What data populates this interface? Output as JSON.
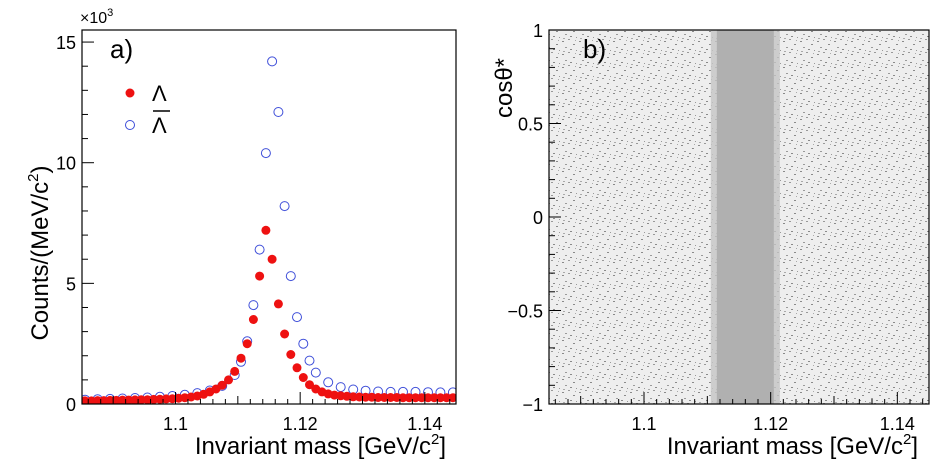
{
  "chart_data": [
    {
      "type": "scatter",
      "panel_label": "a)",
      "xlabel": "Invariant mass [GeV/c",
      "xlabel_sup": "2",
      "xlabel_close": "]",
      "ylabel": "Counts/(MeV/c",
      "ylabel_sup": "2",
      "ylabel_close": ")",
      "y_multiplier": "×10",
      "y_multiplier_exp": "3",
      "xlim": [
        1.085,
        1.145
      ],
      "ylim": [
        0,
        15.5
      ],
      "x_ticks": [
        1.1,
        1.12,
        1.14
      ],
      "x_tick_labels": [
        "1.1",
        "1.12",
        "1.14"
      ],
      "y_ticks": [
        0,
        5,
        10,
        15
      ],
      "y_tick_labels": [
        "0",
        "5",
        "10",
        "15"
      ],
      "grid": false,
      "legend_position": "top-left",
      "series": [
        {
          "name": "Λ",
          "marker": "filled-circle",
          "color": "#ee1111",
          "x": [
            1.0855,
            1.0865,
            1.0875,
            1.0885,
            1.0895,
            1.0905,
            1.0915,
            1.0925,
            1.0935,
            1.0945,
            1.0955,
            1.0965,
            1.0975,
            1.0985,
            1.0995,
            1.1005,
            1.1015,
            1.1025,
            1.1035,
            1.1045,
            1.1055,
            1.1065,
            1.1075,
            1.1085,
            1.1095,
            1.1105,
            1.1115,
            1.1125,
            1.1135,
            1.1145,
            1.1155,
            1.1165,
            1.1175,
            1.1185,
            1.1195,
            1.1205,
            1.1215,
            1.1225,
            1.1235,
            1.1245,
            1.1255,
            1.1265,
            1.1275,
            1.1285,
            1.1295,
            1.1305,
            1.1315,
            1.1325,
            1.1335,
            1.1345,
            1.1355,
            1.1365,
            1.1375,
            1.1385,
            1.1395,
            1.1405,
            1.1415,
            1.1425,
            1.1435,
            1.1445
          ],
          "y": [
            0.13,
            0.13,
            0.14,
            0.14,
            0.15,
            0.15,
            0.16,
            0.16,
            0.17,
            0.18,
            0.18,
            0.19,
            0.2,
            0.21,
            0.22,
            0.24,
            0.26,
            0.29,
            0.33,
            0.4,
            0.5,
            0.62,
            0.78,
            1.0,
            1.35,
            1.9,
            2.5,
            3.5,
            5.3,
            7.2,
            6.0,
            4.15,
            2.9,
            2.05,
            1.5,
            1.1,
            0.8,
            0.62,
            0.5,
            0.42,
            0.37,
            0.34,
            0.32,
            0.3,
            0.29,
            0.28,
            0.28,
            0.27,
            0.27,
            0.27,
            0.27,
            0.26,
            0.26,
            0.26,
            0.26,
            0.26,
            0.26,
            0.26,
            0.26,
            0.26
          ]
        },
        {
          "name": "Λ",
          "name_overline": true,
          "marker": "open-circle",
          "color": "#3f4fd9",
          "x": [
            1.0855,
            1.0875,
            1.0895,
            1.0915,
            1.0935,
            1.0955,
            1.0975,
            1.0995,
            1.1015,
            1.1035,
            1.1055,
            1.1075,
            1.1095,
            1.1105,
            1.1115,
            1.1125,
            1.1135,
            1.1145,
            1.1155,
            1.1165,
            1.1175,
            1.1185,
            1.1195,
            1.1205,
            1.1215,
            1.1225,
            1.1245,
            1.1265,
            1.1285,
            1.1305,
            1.1325,
            1.1345,
            1.1365,
            1.1385,
            1.1405,
            1.1425,
            1.1445
          ],
          "y": [
            0.18,
            0.2,
            0.21,
            0.23,
            0.25,
            0.27,
            0.3,
            0.33,
            0.38,
            0.45,
            0.56,
            0.75,
            1.2,
            1.75,
            2.6,
            4.1,
            6.4,
            10.4,
            14.2,
            12.1,
            8.2,
            5.3,
            3.6,
            2.5,
            1.8,
            1.3,
            0.9,
            0.7,
            0.6,
            0.55,
            0.52,
            0.5,
            0.5,
            0.5,
            0.49,
            0.48,
            0.48
          ]
        }
      ]
    },
    {
      "type": "heatmap",
      "panel_label": "b)",
      "xlabel": "Invariant mass [GeV/c",
      "xlabel_sup": "2",
      "xlabel_close": "]",
      "ylabel": "cosθ*",
      "xlim": [
        1.085,
        1.145
      ],
      "ylim": [
        -1,
        1
      ],
      "x_ticks": [
        1.1,
        1.12,
        1.14
      ],
      "x_tick_labels": [
        "1.1",
        "1.12",
        "1.14"
      ],
      "y_ticks": [
        -1,
        -0.5,
        0,
        0.5,
        1
      ],
      "y_tick_labels": [
        "−1",
        "−0.5",
        "0",
        "0.5",
        "1"
      ],
      "grid": false,
      "colors": {
        "background_density": "#c8c8c8",
        "peak_band": "#b0b0b0",
        "dots": "#8a8a8a"
      },
      "peak_band": {
        "x_min": 1.1115,
        "x_max": 1.1205,
        "center": 1.1157
      }
    }
  ]
}
